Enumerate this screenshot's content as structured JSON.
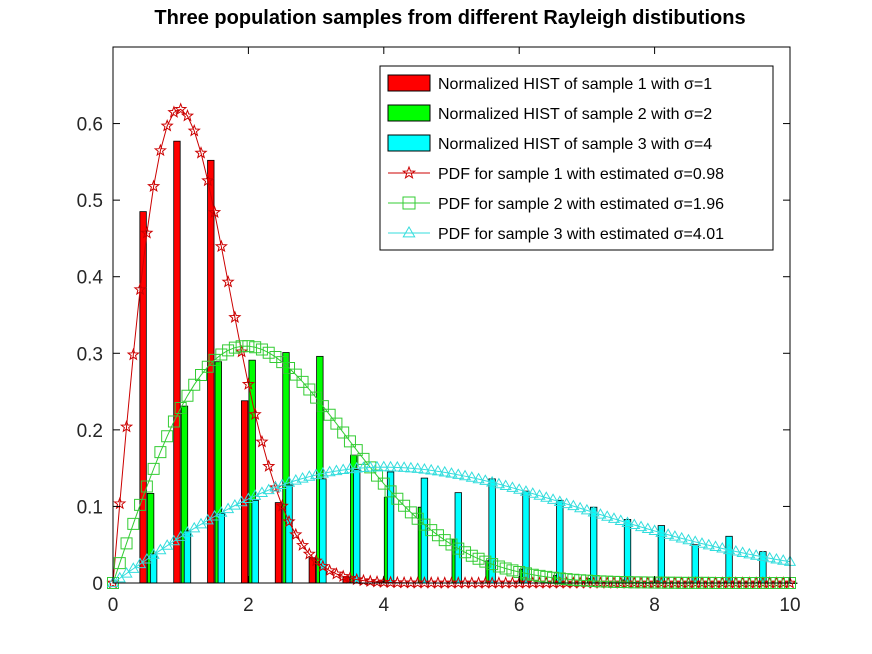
{
  "chart_data": {
    "type": "bar",
    "title": "Three population samples from different Rayleigh distibutions",
    "xlabel": "",
    "ylabel": "",
    "xlim": [
      0,
      10
    ],
    "ylim": [
      0,
      0.7
    ],
    "xticks": [
      "0",
      "2",
      "4",
      "6",
      "8",
      "10"
    ],
    "yticks": [
      "0",
      "0.1",
      "0.2",
      "0.3",
      "0.4",
      "0.5",
      "0.6"
    ],
    "grid": false,
    "legend_position": "top-right",
    "histograms": [
      {
        "name": "Normalized HIST of sample 1 with σ=1",
        "color": "#ff0000",
        "x": [
          0.5,
          1.0,
          1.5,
          2.0,
          2.5,
          3.0,
          3.5,
          4.0
        ],
        "values": [
          0.485,
          0.577,
          0.552,
          0.238,
          0.105,
          0.033,
          0.008,
          0.002
        ]
      },
      {
        "name": "Normalized HIST of sample 2 with σ=2",
        "color": "#00ff00",
        "x": [
          0.5,
          1.0,
          1.5,
          2.0,
          2.5,
          3.0,
          3.5,
          4.0,
          4.5,
          5.0,
          5.5,
          6.0,
          6.5,
          7.0,
          7.5,
          8.0,
          8.5,
          9.0,
          9.5,
          10.0
        ],
        "values": [
          0.117,
          0.231,
          0.289,
          0.291,
          0.301,
          0.296,
          0.167,
          0.112,
          0.099,
          0.057,
          0.029,
          0.018,
          0.01,
          0.006,
          0.004,
          0.003,
          0.002,
          0.001,
          0.001,
          0.0
        ]
      },
      {
        "name": "Normalized HIST of sample 3 with σ=4",
        "color": "#00ffff",
        "x": [
          0.6,
          1.1,
          1.6,
          2.1,
          2.6,
          3.1,
          3.6,
          4.1,
          4.6,
          5.1,
          5.6,
          6.1,
          6.6,
          7.1,
          7.6,
          8.1,
          8.6,
          9.1,
          9.6
        ],
        "values": [
          0.038,
          0.068,
          0.091,
          0.108,
          0.128,
          0.136,
          0.148,
          0.145,
          0.137,
          0.118,
          0.136,
          0.12,
          0.108,
          0.099,
          0.083,
          0.075,
          0.05,
          0.061,
          0.041
        ]
      }
    ],
    "pdf_series": [
      {
        "name": "PDF for sample 1 with estimated σ=0.98",
        "sigma": 0.98,
        "color": "#cc0000",
        "marker": "star"
      },
      {
        "name": "PDF for sample 2 with estimated σ=1.96",
        "sigma": 1.96,
        "color": "#33cc33",
        "marker": "square"
      },
      {
        "name": "PDF for sample 3 with estimated σ=4.01",
        "sigma": 4.01,
        "color": "#33dddd",
        "marker": "triangle"
      }
    ]
  }
}
